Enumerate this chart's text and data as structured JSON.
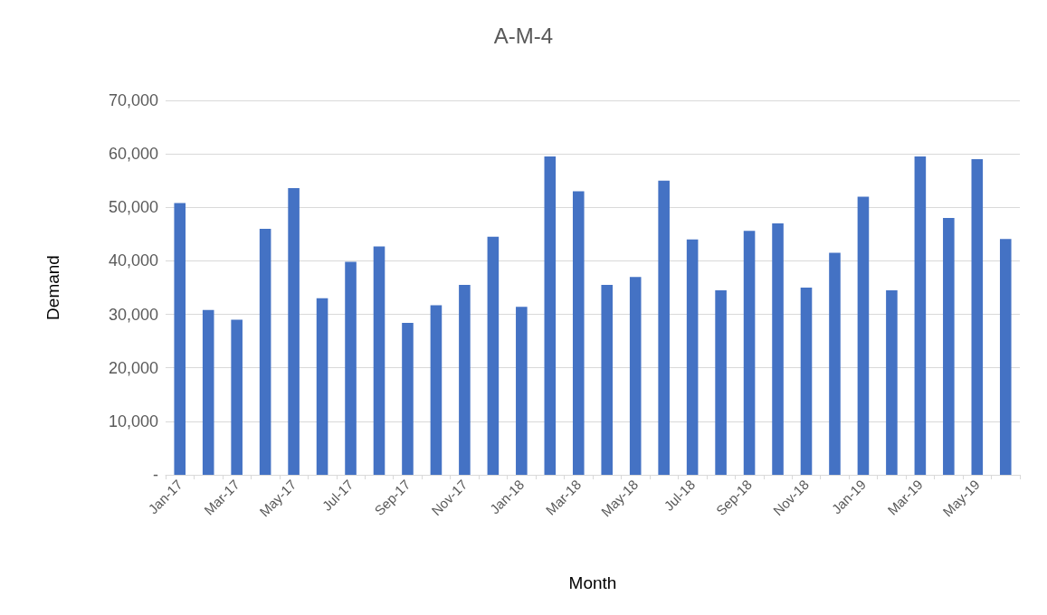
{
  "chart_data": {
    "type": "bar",
    "title": "A-M-4",
    "xlabel": "Month",
    "ylabel": "Demand",
    "categories": [
      "Jan-17",
      null,
      "Mar-17",
      null,
      "May-17",
      null,
      "Jul-17",
      null,
      "Sep-17",
      null,
      "Nov-17",
      null,
      "Jan-18",
      null,
      "Mar-18",
      null,
      "May-18",
      null,
      "Jul-18",
      null,
      "Sep-18",
      null,
      "Nov-18",
      null,
      "Jan-19",
      null,
      "Mar-19",
      null,
      "May-19",
      null
    ],
    "values": [
      50800,
      30800,
      29000,
      46000,
      53600,
      33000,
      39800,
      42700,
      28400,
      31700,
      35500,
      44500,
      31400,
      59500,
      53000,
      35500,
      37000,
      55000,
      44000,
      34500,
      45600,
      47000,
      35000,
      41500,
      52000,
      34500,
      59500,
      48000,
      59000,
      44100
    ],
    "color": "#4472c4",
    "ylim": [
      0,
      70000
    ],
    "yticks": [
      {
        "value": 0,
        "label": "-"
      },
      {
        "value": 10000,
        "label": "10,000"
      },
      {
        "value": 20000,
        "label": "20,000"
      },
      {
        "value": 30000,
        "label": "30,000"
      },
      {
        "value": 40000,
        "label": "40,000"
      },
      {
        "value": 50000,
        "label": "50,000"
      },
      {
        "value": 60000,
        "label": "60,000"
      },
      {
        "value": 70000,
        "label": "70,000"
      }
    ],
    "grid": "y"
  }
}
